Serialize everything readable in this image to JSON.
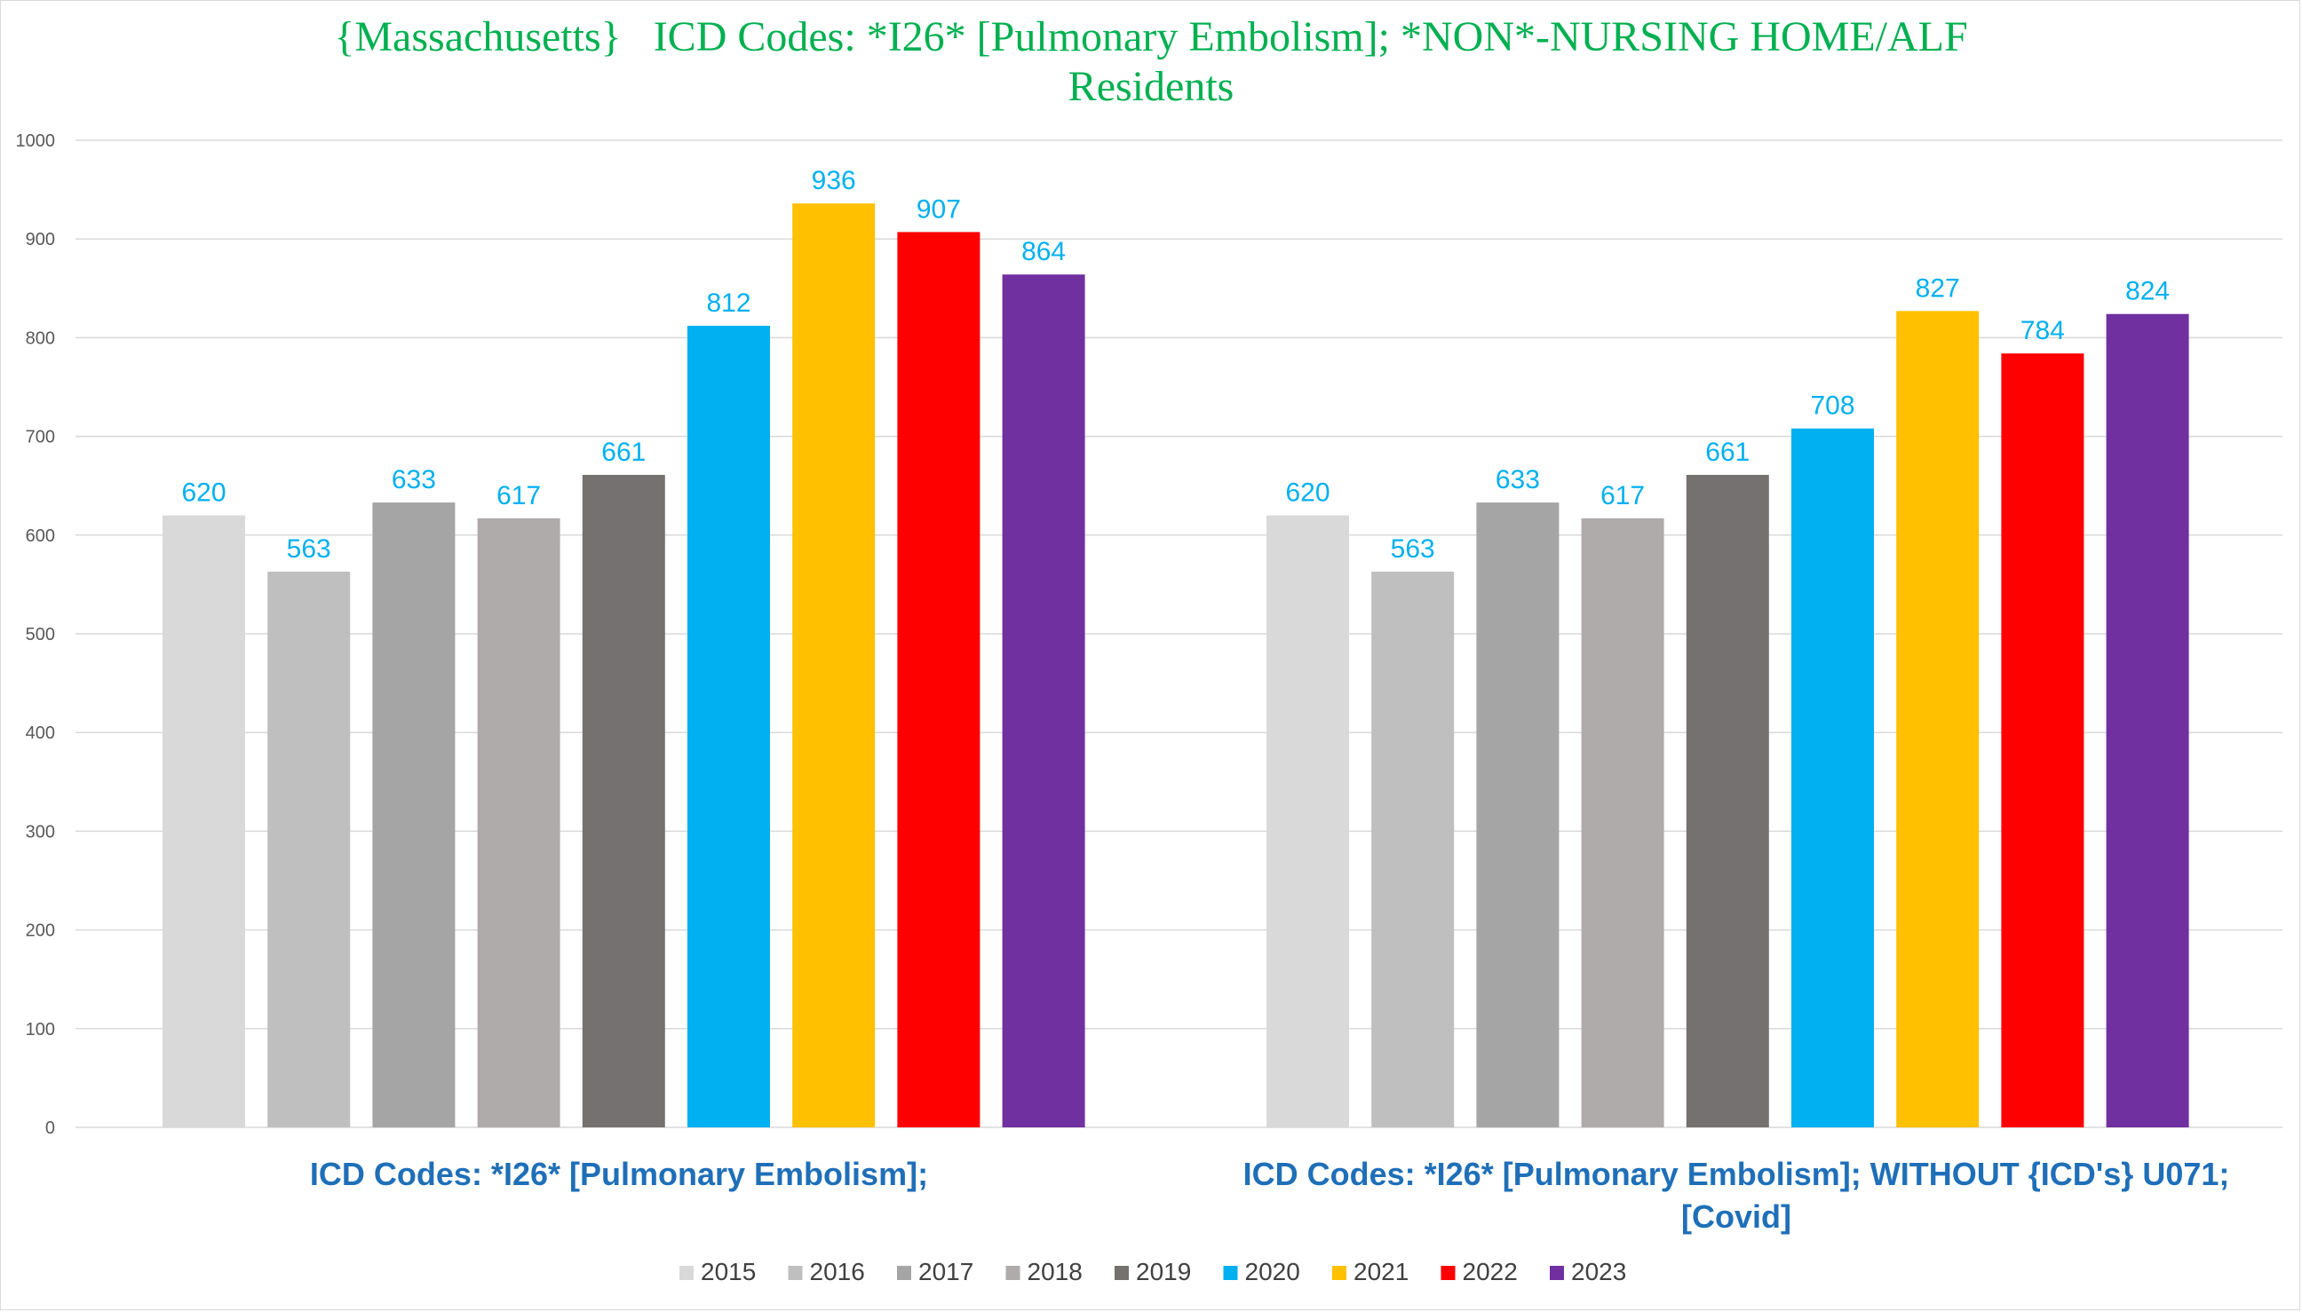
{
  "chart_data": {
    "type": "bar",
    "title_line1": "{Massachusetts}   ICD Codes: *I26* [Pulmonary Embolism]; *NON*-NURSING HOME/ALF",
    "title_line2": "Residents",
    "categories": [
      [
        "ICD Codes: *I26* [Pulmonary Embolism];"
      ],
      [
        "ICD Codes: *I26* [Pulmonary Embolism];  WITHOUT {ICD's} U071;",
        "[Covid]"
      ]
    ],
    "series": [
      {
        "name": "2015",
        "color": "#d9d9d9",
        "values": [
          620,
          620
        ]
      },
      {
        "name": "2016",
        "color": "#bfbfbf",
        "values": [
          563,
          563
        ]
      },
      {
        "name": "2017",
        "color": "#a5a5a5",
        "values": [
          633,
          633
        ]
      },
      {
        "name": "2018",
        "color": "#afabab",
        "values": [
          617,
          617
        ]
      },
      {
        "name": "2019",
        "color": "#767171",
        "values": [
          661,
          661
        ]
      },
      {
        "name": "2020",
        "color": "#00b0f0",
        "values": [
          812,
          708
        ]
      },
      {
        "name": "2021",
        "color": "#ffc000",
        "values": [
          936,
          827
        ]
      },
      {
        "name": "2022",
        "color": "#ff0000",
        "values": [
          907,
          784
        ]
      },
      {
        "name": "2023",
        "color": "#7030a0",
        "values": [
          864,
          824
        ]
      }
    ],
    "ylim": [
      0,
      1000
    ],
    "yticks": [
      0,
      100,
      200,
      300,
      400,
      500,
      600,
      700,
      800,
      900,
      1000
    ],
    "grid": true,
    "legend_position": "bottom",
    "data_label_color": "#00b0f0",
    "title_color": "#00b050",
    "category_label_color": "#1f6fb8"
  }
}
